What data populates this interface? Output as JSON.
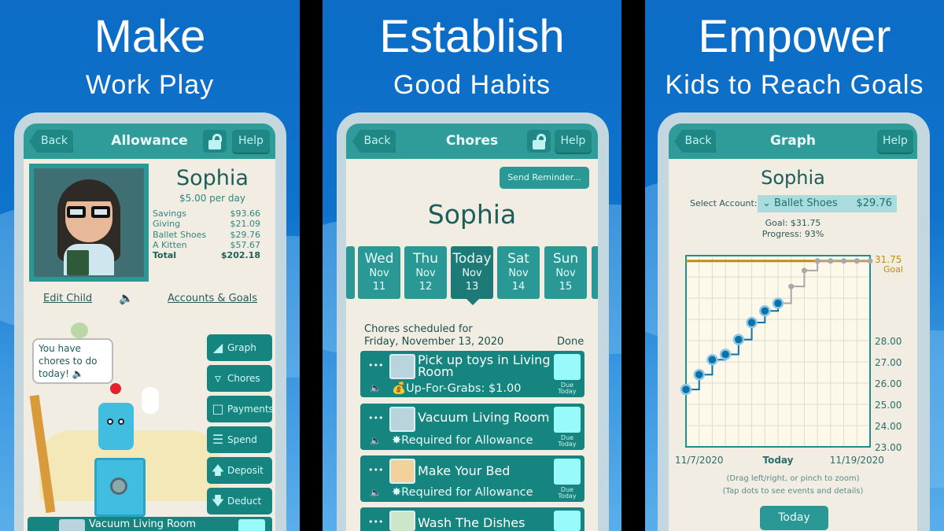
{
  "panels": [
    {
      "headline": "Make",
      "subheadline": "Work Play",
      "header": {
        "back": "Back",
        "title": "Allowance",
        "help": "Help",
        "lock_icon": "lock-open-icon"
      },
      "child": {
        "name": "Sophia",
        "rate": "$5.00 per day",
        "accounts": [
          {
            "label": "Savings",
            "value": "$93.66"
          },
          {
            "label": "Giving",
            "value": "$21.09"
          },
          {
            "label": "Ballet Shoes",
            "value": "$29.76"
          },
          {
            "label": "A Kitten",
            "value": "$57.67"
          }
        ],
        "total_label": "Total",
        "total_value": "$202.18"
      },
      "links": {
        "edit_child": "Edit Child",
        "accounts_goals": "Accounts & Goals"
      },
      "speech": "You have chores to do today!",
      "side_buttons": [
        {
          "label": "Graph",
          "icon": "graph-icon"
        },
        {
          "label": "Chores",
          "icon": "bucket-icon"
        },
        {
          "label": "Payments",
          "icon": "square-icon"
        },
        {
          "label": "Spend",
          "icon": "coins-icon"
        },
        {
          "label": "Deposit",
          "icon": "arrow-up-icon"
        },
        {
          "label": "Deduct",
          "icon": "arrow-down-icon"
        }
      ],
      "bottom_chore": "Vacuum Living Room"
    },
    {
      "headline": "Establish",
      "subheadline": "Good Habits",
      "header": {
        "back": "Back",
        "title": "Chores",
        "help": "Help"
      },
      "send_reminder": "Send Reminder...",
      "child_name": "Sophia",
      "days": [
        {
          "day": "Wed",
          "month": "Nov",
          "date": "11"
        },
        {
          "day": "Thu",
          "month": "Nov",
          "date": "12"
        },
        {
          "day": "Today",
          "month": "Nov",
          "date": "13",
          "selected": true
        },
        {
          "day": "Sat",
          "month": "Nov",
          "date": "14"
        },
        {
          "day": "Sun",
          "month": "Nov",
          "date": "15"
        }
      ],
      "scheduled_label": "Chores scheduled for",
      "scheduled_date": "Friday, November 13, 2020",
      "done_label": "Done",
      "chores": [
        {
          "title": "Pick up toys in Living Room",
          "subtitle": "Up-For-Grabs: $1.00",
          "due": "Due Today"
        },
        {
          "title": "Vacuum Living Room",
          "subtitle": "Required for Allowance",
          "due": "Due Today"
        },
        {
          "title": "Make Your Bed",
          "subtitle": "Required for Allowance",
          "due": "Due Today"
        },
        {
          "title": "Wash The Dishes",
          "subtitle": "",
          "due": ""
        }
      ]
    },
    {
      "headline": "Empower",
      "subheadline": "Kids to Reach Goals",
      "header": {
        "back": "Back",
        "title": "Graph",
        "help": "Help"
      },
      "child_name": "Sophia",
      "select_label": "Select Account:",
      "selected_account": "Ballet Shoes",
      "selected_balance": "$29.76",
      "goal": "Goal: $31.75",
      "progress": "Progress: 93%",
      "hint1": "(Drag left/right, or pinch to zoom)",
      "hint2": "(Tap dots to see events and details)",
      "today_button": "Today"
    }
  ],
  "chart_data": {
    "type": "line",
    "step": true,
    "x": [
      "11/6/2020",
      "11/7/2020",
      "11/8/2020",
      "11/9/2020",
      "11/10/2020",
      "11/11/2020",
      "11/12/2020",
      "11/13/2020",
      "11/14/2020",
      "11/15/2020",
      "11/16/2020",
      "11/17/2020",
      "11/18/2020",
      "11/19/2020",
      "11/20/2020"
    ],
    "actual": [
      25.7,
      26.4,
      27.1,
      27.35,
      28.05,
      28.85,
      29.4,
      29.76
    ],
    "projected": [
      29.76,
      30.55,
      31.3,
      31.75,
      31.75,
      31.75,
      31.75,
      31.75
    ],
    "goal": 31.75,
    "goal_label": "Goal",
    "goal_value_label": "31.75",
    "ylim": [
      23,
      32
    ],
    "ytick_labels": [
      "28.00",
      "27.00",
      "26.00",
      "25.00",
      "24.00",
      "23.00"
    ],
    "xtick_labels": [
      "11/7/2020",
      "Today",
      "11/19/2020"
    ],
    "grid": true,
    "colors": {
      "actual": "#0a72a8",
      "projected": "#a8a8a8",
      "goal": "#c58a12",
      "frame": "#1f8f8c"
    }
  }
}
